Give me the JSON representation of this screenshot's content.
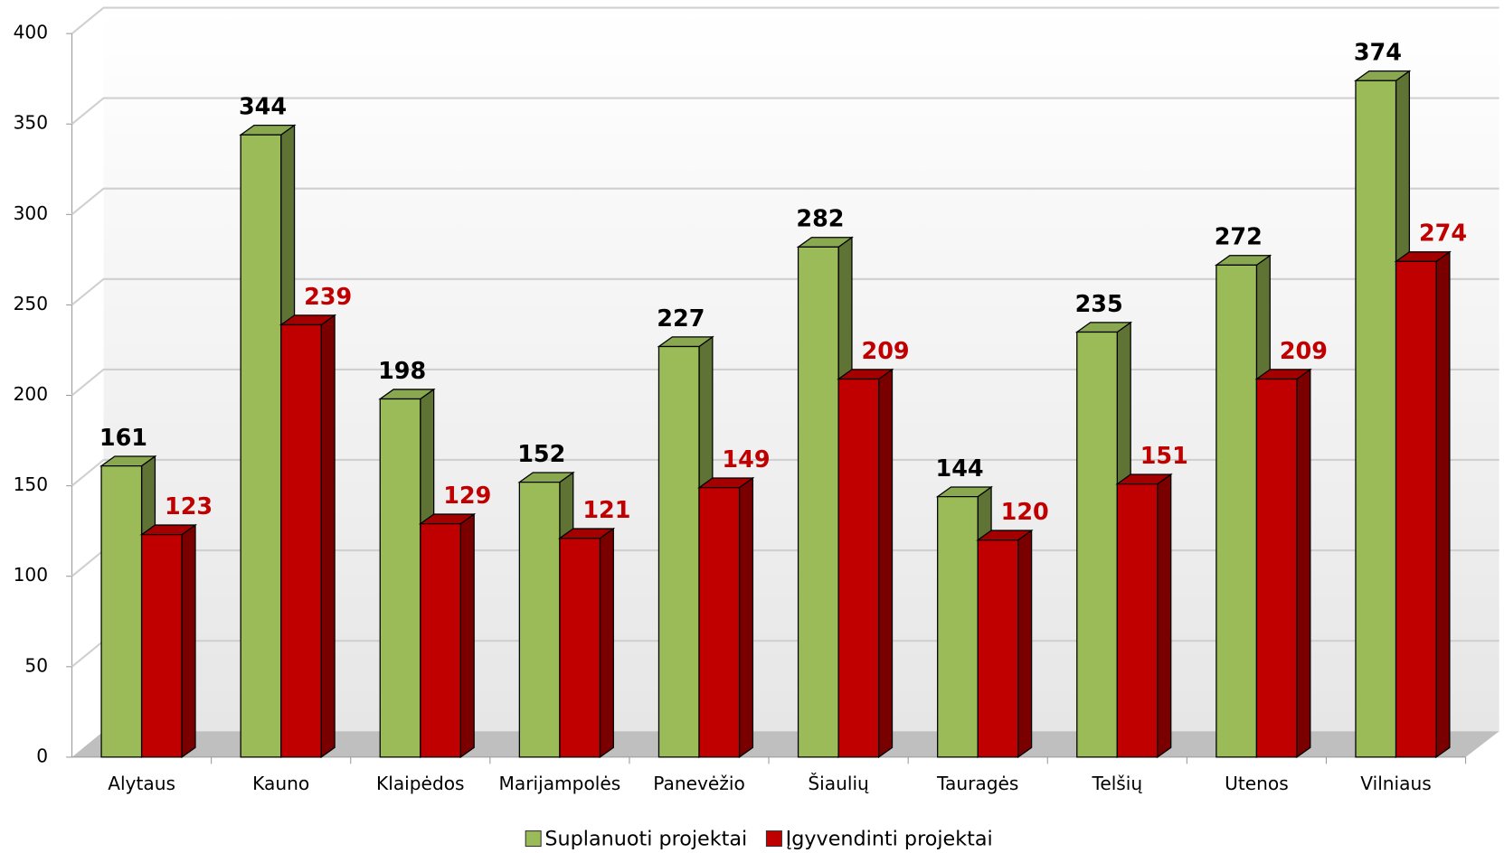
{
  "chart_data": {
    "type": "bar3d",
    "categories": [
      "Alytaus",
      "Kauno",
      "Klaipėdos",
      "Marijampolės",
      "Panevėžio",
      "Šiaulių",
      "Tauragės",
      "Telšių",
      "Utenos",
      "Vilniaus"
    ],
    "series": [
      {
        "name": "Suplanuoti projektai",
        "color": "#9bbb59",
        "values": [
          161,
          344,
          198,
          152,
          227,
          282,
          144,
          235,
          272,
          374
        ]
      },
      {
        "name": "Įgyvendinti projektai",
        "color": "#c00000",
        "values": [
          123,
          239,
          129,
          121,
          149,
          209,
          120,
          151,
          209,
          274
        ]
      }
    ],
    "ylim": [
      0,
      400
    ],
    "yticks": [
      0,
      50,
      100,
      150,
      200,
      250,
      300,
      350,
      400
    ],
    "grid": true,
    "legend": "bottom"
  }
}
